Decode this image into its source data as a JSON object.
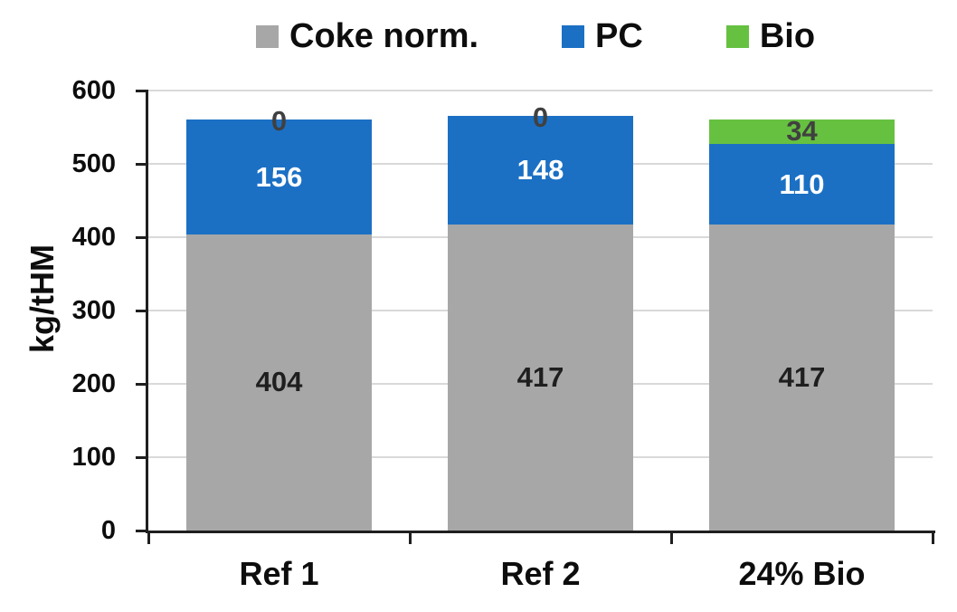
{
  "chart_data": {
    "type": "bar",
    "stacked": true,
    "title": "",
    "ylabel": "kg/tHM",
    "xlabel": "",
    "ylim": [
      0,
      600
    ],
    "yticks": [
      0,
      100,
      200,
      300,
      400,
      500,
      600
    ],
    "categories": [
      "Ref 1",
      "Ref 2",
      "24% Bio"
    ],
    "series": [
      {
        "name": "Coke norm.",
        "color": "#a7a7a7",
        "label_color": "#1f1f1f",
        "values": [
          404,
          417,
          417
        ]
      },
      {
        "name": "PC",
        "color": "#1b70c4",
        "label_color": "#ffffff",
        "values": [
          156,
          148,
          110
        ]
      },
      {
        "name": "Bio",
        "color": "#66c141",
        "label_color": "#404040",
        "values": [
          0,
          0,
          34
        ]
      }
    ],
    "legend_position": "top",
    "grid": true,
    "colors": {
      "axis": "#1f1f1f",
      "gridline": "#d9d9d9",
      "background": "#ffffff",
      "zero_label": "#404040"
    }
  }
}
